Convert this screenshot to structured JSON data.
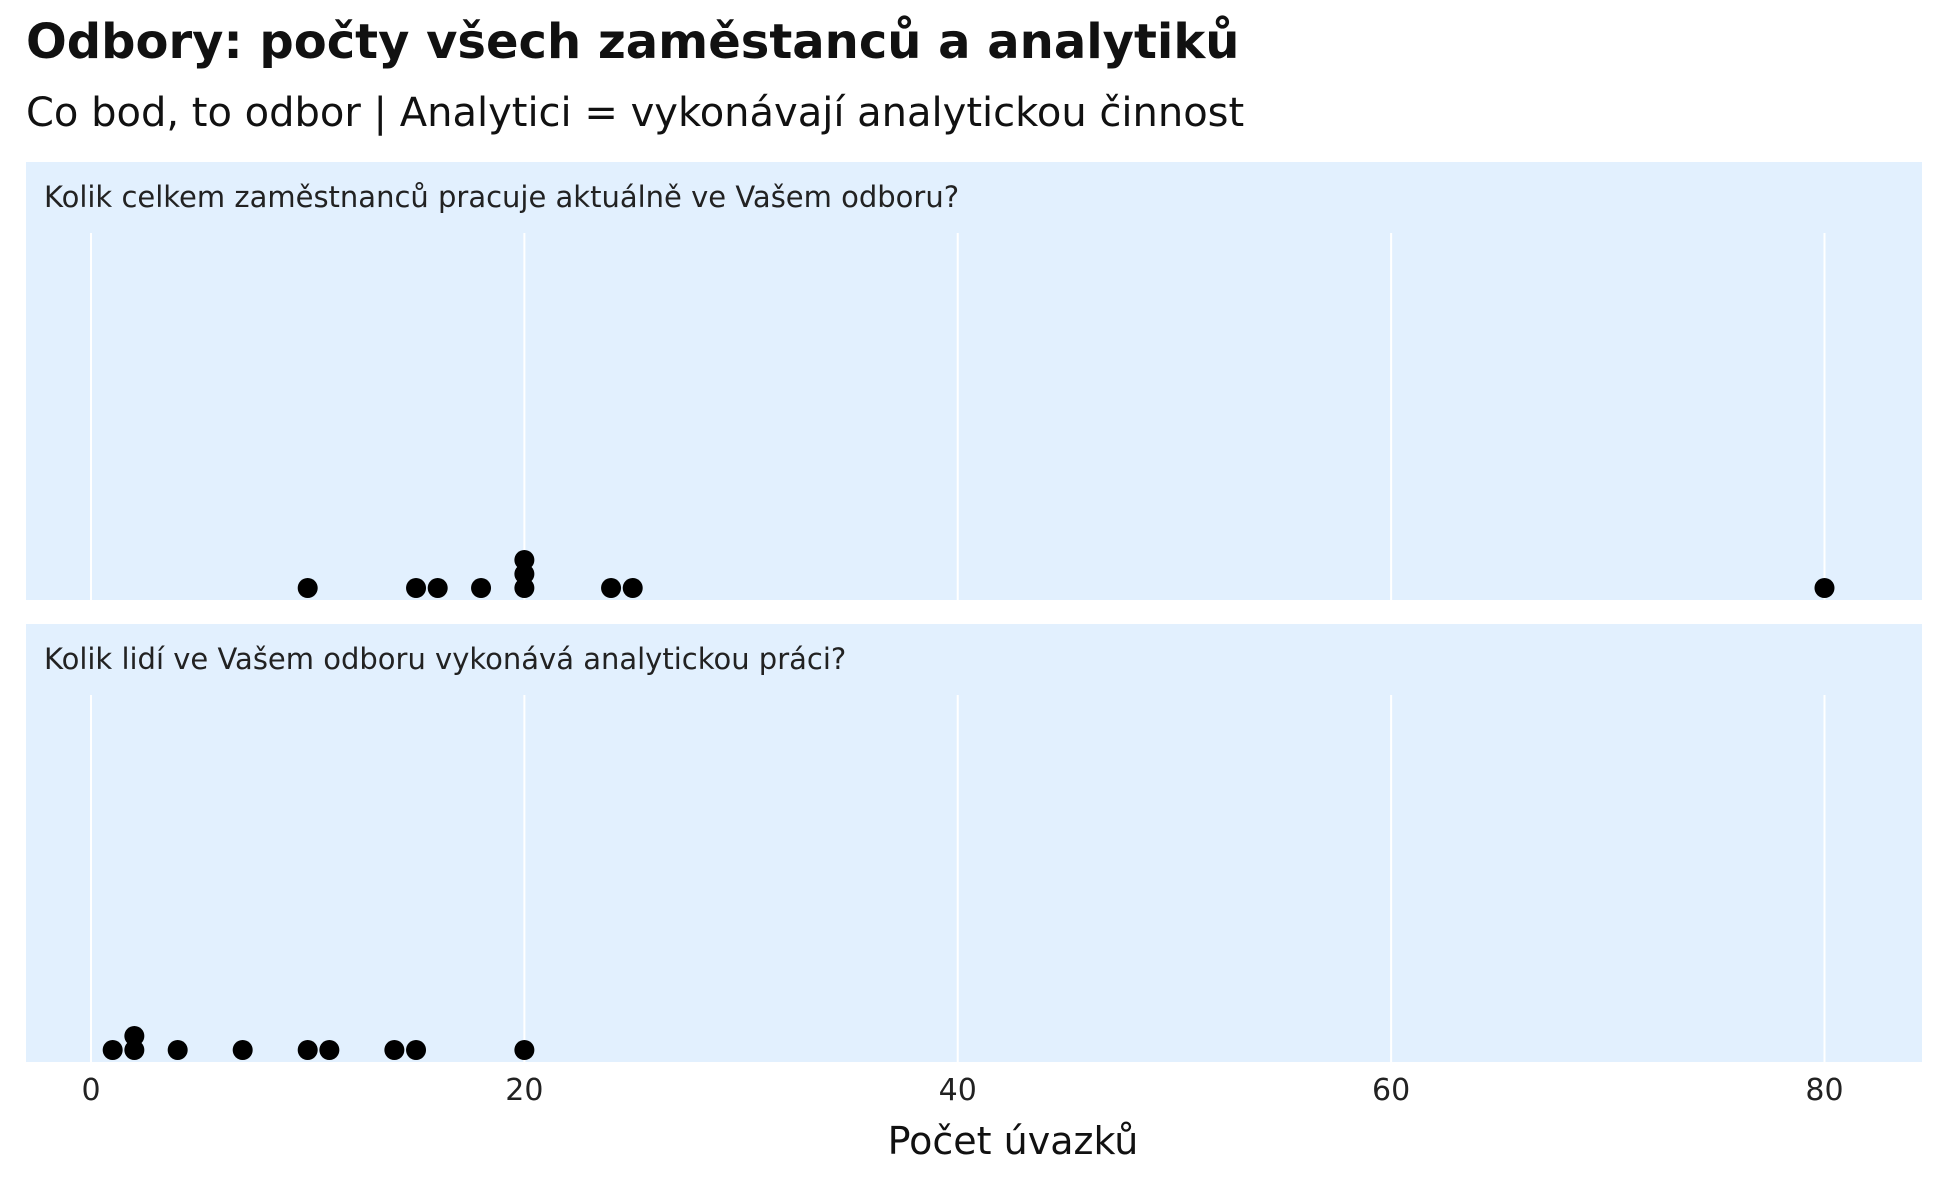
{
  "chart_data": {
    "type": "scatter",
    "title": "Odbory: počty všech zaměstanců a analytiků",
    "subtitle": "Co bod, to odbor | Analytici = vykonávají analytickou činnost",
    "xlabel": "Počet úvazků",
    "xlim": [
      -3,
      84.5
    ],
    "xticks": [
      0,
      20,
      40,
      60,
      80
    ],
    "xtick_labels": [
      "0",
      "20",
      "40",
      "60",
      "80"
    ],
    "grid": "vertical",
    "colors": {
      "panel_background": "#e2f0fe",
      "grid": "#ffffff",
      "point": "#000000"
    },
    "facets": [
      {
        "label": "Kolik celkem zaměstnanců pracuje aktuálně ve Vašem odboru?",
        "values": [
          10,
          15,
          16,
          18,
          20,
          20,
          20,
          24,
          25,
          80
        ]
      },
      {
        "label": "Kolik lidí ve Vašem odboru vykonává analytickou práci?",
        "values": [
          1,
          2,
          2,
          4,
          7,
          10,
          11,
          14,
          15,
          20
        ]
      }
    ]
  }
}
